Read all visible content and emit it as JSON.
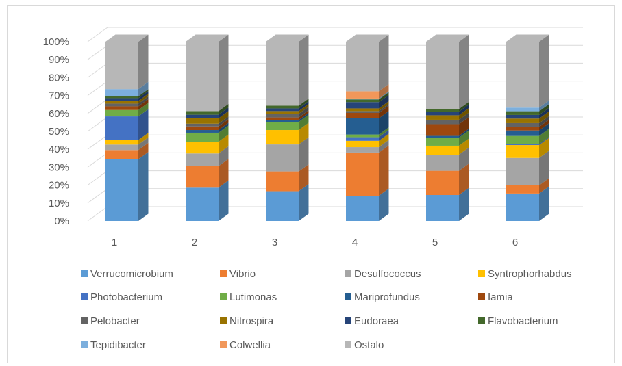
{
  "chart_data": {
    "type": "bar",
    "subtype": "100% stacked column (3-D)",
    "title": "",
    "xlabel": "",
    "ylabel": "",
    "categories": [
      "1",
      "2",
      "3",
      "4",
      "5",
      "6"
    ],
    "y_ticks": [
      "0%",
      "10%",
      "20%",
      "30%",
      "40%",
      "50%",
      "60%",
      "70%",
      "80%",
      "90%",
      "100%"
    ],
    "ylim": [
      0,
      100
    ],
    "grid": true,
    "legend_position": "bottom",
    "series": [
      {
        "name": "Verrucomicrobium",
        "color": "#5B9BD5",
        "values": [
          34,
          18.5,
          16.5,
          14,
          14.5,
          15
        ]
      },
      {
        "name": "Vibrio",
        "color": "#ED7D31",
        "values": [
          5,
          12,
          11,
          24,
          13.5,
          4.5
        ]
      },
      {
        "name": "Desulfococcus",
        "color": "#A5A5A5",
        "values": [
          3,
          7,
          15,
          3,
          9,
          15
        ]
      },
      {
        "name": "Syntrophorhabdus",
        "color": "#FFC000",
        "values": [
          2.5,
          6.5,
          8,
          3.5,
          5,
          7
        ]
      },
      {
        "name": "Photobacterium",
        "color": "#4472C4",
        "values": [
          13,
          0,
          0,
          2,
          0,
          0.5
        ]
      },
      {
        "name": "Lutimonas",
        "color": "#70AD47",
        "values": [
          3.5,
          5,
          4.5,
          1.5,
          4.5,
          4.5
        ]
      },
      {
        "name": "Mariprofundus",
        "color": "#255E91",
        "values": [
          0,
          1.5,
          1,
          9,
          1,
          3
        ]
      },
      {
        "name": "Iamia",
        "color": "#9E480E",
        "values": [
          2,
          2,
          1.5,
          3,
          6.5,
          2
        ]
      },
      {
        "name": "Pelobacter",
        "color": "#636363",
        "values": [
          1.5,
          1.5,
          2,
          1,
          2.5,
          2
        ]
      },
      {
        "name": "Nitrospira",
        "color": "#997300",
        "values": [
          1.5,
          3,
          1.5,
          1.5,
          2.5,
          2.5
        ]
      },
      {
        "name": "Eudoraea",
        "color": "#264478",
        "values": [
          1.5,
          2,
          1.5,
          3.5,
          2,
          2
        ]
      },
      {
        "name": "Flavobacterium",
        "color": "#43682B",
        "values": [
          1,
          2,
          1.5,
          1.5,
          1.5,
          2
        ]
      },
      {
        "name": "Tepidibacter",
        "color": "#7CAFDD",
        "values": [
          4,
          0,
          0,
          0.5,
          0,
          2
        ]
      },
      {
        "name": "Colwellia",
        "color": "#F1975A",
        "values": [
          0,
          0,
          0,
          4,
          0,
          0
        ]
      },
      {
        "name": "Ostalo",
        "color": "#B7B7B7",
        "values": [
          26,
          38.5,
          35.5,
          27.5,
          37.5,
          36
        ]
      }
    ]
  }
}
